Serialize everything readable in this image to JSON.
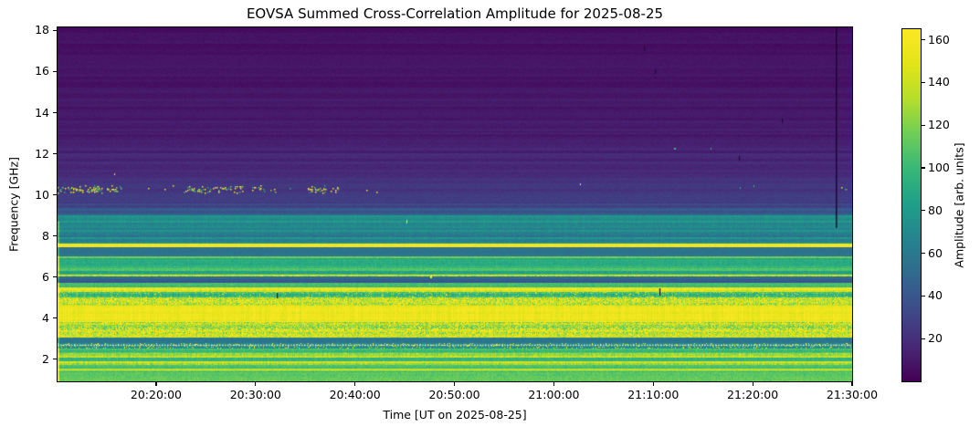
{
  "chart_data": {
    "type": "heatmap",
    "title": "EOVSA Summed Cross-Correlation Amplitude for 2025-08-25",
    "xlabel": "Time [UT on 2025-08-25]",
    "ylabel": "Frequency [GHz]",
    "colormap": "viridis",
    "x_ticks": [
      "20:20:00",
      "20:30:00",
      "20:40:00",
      "20:50:00",
      "21:00:00",
      "21:10:00",
      "21:20:00",
      "21:30:00"
    ],
    "x_start": "20:10:05",
    "x_end": "21:30:00",
    "y_ticks": [
      2,
      4,
      6,
      8,
      10,
      12,
      14,
      16,
      18
    ],
    "y_range_ghz": [
      0.93,
      18.15
    ],
    "grid": false,
    "colorbar": {
      "label": "Amplitude [arb. units]",
      "ticks": [
        20,
        40,
        60,
        80,
        100,
        120,
        140,
        160
      ],
      "vmin": 0,
      "vmax": 165,
      "position": "right"
    },
    "viridis_stops": [
      [
        68,
        1,
        84
      ],
      [
        72,
        40,
        120
      ],
      [
        62,
        74,
        137
      ],
      [
        49,
        104,
        142
      ],
      [
        38,
        130,
        142
      ],
      [
        31,
        158,
        137
      ],
      [
        53,
        183,
        121
      ],
      [
        109,
        205,
        89
      ],
      [
        180,
        222,
        44
      ],
      [
        226,
        228,
        24
      ],
      [
        253,
        231,
        37
      ]
    ],
    "frequency_bands_columns": [
      "f_top_ghz",
      "f_bottom_ghz",
      "amp_top",
      "amp_bottom",
      "stripe_variation",
      "pixel_noise",
      "speckle_density",
      "speckle_amp"
    ],
    "frequency_bands": [
      [
        18.15,
        16.0,
        6,
        8,
        2.5,
        2,
        0,
        0
      ],
      [
        16.0,
        13.0,
        8,
        12,
        3,
        2,
        0,
        0
      ],
      [
        13.0,
        11.0,
        12,
        19,
        4,
        2.5,
        0,
        0
      ],
      [
        11.0,
        9.6,
        20,
        27,
        4,
        3,
        0,
        0
      ],
      [
        9.6,
        9.0,
        28,
        45,
        8,
        4,
        0,
        0
      ],
      [
        9.0,
        8.4,
        66,
        78,
        12,
        5,
        0,
        0
      ],
      [
        8.4,
        7.65,
        70,
        70,
        16,
        6,
        0,
        0
      ],
      [
        7.65,
        7.46,
        158,
        158,
        5,
        6,
        0,
        0
      ],
      [
        7.46,
        7.02,
        58,
        58,
        10,
        5,
        0,
        0
      ],
      [
        7.02,
        6.9,
        112,
        112,
        10,
        6,
        0,
        0
      ],
      [
        6.9,
        6.58,
        82,
        86,
        14,
        6,
        0,
        0
      ],
      [
        6.58,
        6.32,
        106,
        106,
        12,
        6,
        0,
        0
      ],
      [
        6.32,
        6.12,
        88,
        88,
        10,
        6,
        0,
        0
      ],
      [
        6.12,
        6.02,
        130,
        130,
        15,
        10,
        0.3,
        160
      ],
      [
        6.02,
        5.72,
        46,
        46,
        7,
        4,
        0,
        0
      ],
      [
        5.72,
        5.52,
        95,
        98,
        10,
        6,
        0,
        0
      ],
      [
        5.52,
        5.28,
        146,
        146,
        14,
        10,
        0.25,
        165
      ],
      [
        5.28,
        5.0,
        100,
        104,
        10,
        7,
        0.05,
        160
      ],
      [
        5.0,
        4.62,
        128,
        132,
        10,
        10,
        0.38,
        163
      ],
      [
        4.62,
        3.82,
        152,
        155,
        6,
        6,
        0.15,
        165
      ],
      [
        3.82,
        3.08,
        126,
        126,
        10,
        10,
        0.42,
        163
      ],
      [
        3.08,
        2.78,
        57,
        57,
        6,
        5,
        0,
        0
      ],
      [
        2.78,
        2.52,
        74,
        74,
        8,
        6,
        0.08,
        160
      ],
      [
        2.52,
        2.3,
        102,
        102,
        9,
        7,
        0,
        0
      ],
      [
        2.3,
        2.1,
        126,
        126,
        12,
        8,
        0.1,
        160
      ],
      [
        2.1,
        1.92,
        104,
        104,
        9,
        7,
        0,
        0
      ],
      [
        1.92,
        1.72,
        132,
        132,
        12,
        8,
        0.08,
        160
      ],
      [
        1.72,
        1.56,
        100,
        100,
        9,
        7,
        0,
        0
      ],
      [
        1.56,
        1.4,
        130,
        130,
        10,
        8,
        0,
        0
      ],
      [
        1.4,
        1.16,
        106,
        106,
        10,
        7,
        0,
        0
      ],
      [
        1.16,
        0.93,
        116,
        120,
        8,
        7,
        0,
        0
      ]
    ],
    "features": {
      "rfi_speckle_band": {
        "freq_range_ghz": [
          10.12,
          10.48
        ],
        "clusters_xfrac_density": [
          [
            0.0,
            0.08,
            0.13
          ],
          [
            0.155,
            0.235,
            0.09
          ],
          [
            0.245,
            0.275,
            0.06
          ],
          [
            0.315,
            0.355,
            0.1
          ],
          [
            0.985,
            1.0,
            0.05
          ]
        ],
        "sparse_xfrac_density": [
          0.0,
          0.45,
          0.006
        ],
        "dot_amps": [
          160,
          120,
          95
        ]
      },
      "isolated_dots_xfrac_freq_amp_w_h": [
        [
          0.657,
          10.55,
          165,
          1,
          2
        ],
        [
          0.859,
          10.4,
          95,
          1,
          2
        ],
        [
          0.876,
          10.45,
          98,
          1,
          2
        ],
        [
          0.776,
          12.3,
          100,
          2,
          2
        ],
        [
          0.822,
          12.3,
          92,
          1,
          2
        ],
        [
          0.439,
          8.8,
          158,
          1,
          4
        ],
        [
          0.469,
          6.08,
          165,
          2,
          3
        ],
        [
          0.071,
          11.05,
          160,
          1,
          2
        ]
      ],
      "dark_dashes_xfrac_freq_h": [
        [
          0.738,
          17.2,
          5
        ],
        [
          0.752,
          16.1,
          5
        ],
        [
          0.912,
          13.7,
          5
        ],
        [
          0.858,
          11.9,
          5
        ],
        [
          0.276,
          5.25,
          6
        ],
        [
          0.757,
          5.45,
          8
        ]
      ],
      "dark_vertical_line": {
        "x_frac": 0.9793,
        "freq_top_ghz": 18.15,
        "freq_bottom_ghz": 8.4,
        "color": "#1a0833"
      },
      "dotted_white_line_ghz": 2.72,
      "dotted_line_colors": [
        "#f2f2cf",
        "#e0e080"
      ],
      "bright_left_edge": {
        "freq_below_ghz": 8.7,
        "amp_boost": 40
      },
      "dark_dash_color": "#200a40"
    }
  }
}
